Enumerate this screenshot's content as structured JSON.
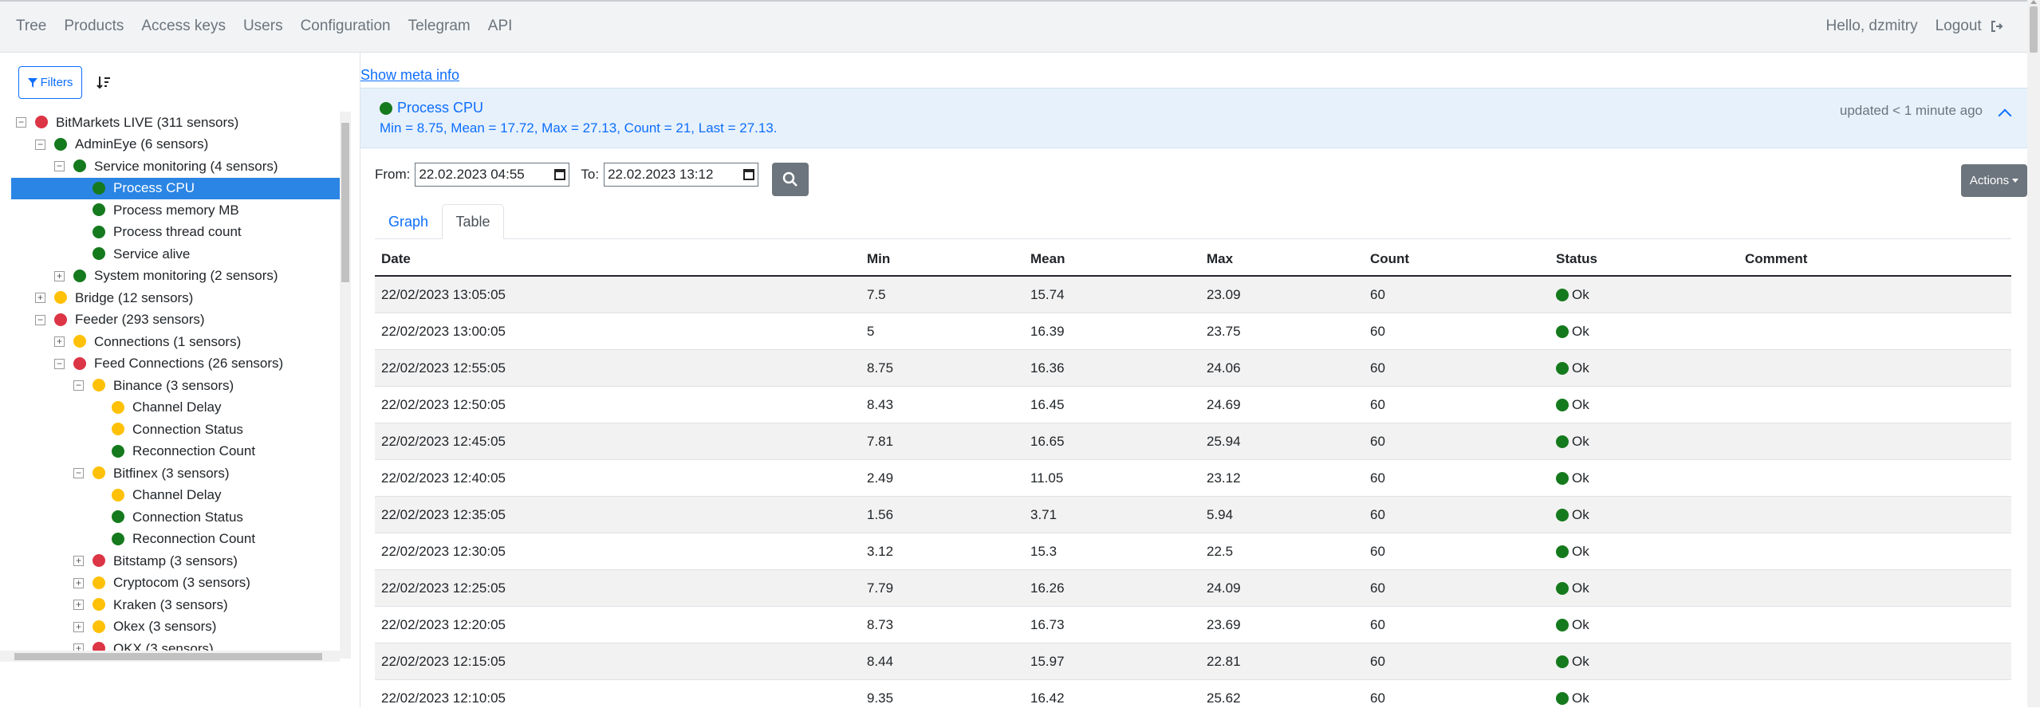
{
  "nav": {
    "links": [
      "Tree",
      "Products",
      "Access keys",
      "Users",
      "Configuration",
      "Telegram",
      "API"
    ],
    "greeting": "Hello, dzmitry",
    "logout": "Logout"
  },
  "sidebar": {
    "filters_label": "Filters",
    "tree": [
      {
        "label": "BitMarkets LIVE (311 sensors)",
        "status": "red",
        "depth": 0,
        "toggle": "minus"
      },
      {
        "label": "AdminEye (6 sensors)",
        "status": "green",
        "depth": 1,
        "toggle": "minus"
      },
      {
        "label": "Service monitoring (4 sensors)",
        "status": "green",
        "depth": 2,
        "toggle": "minus"
      },
      {
        "label": "Process CPU",
        "status": "green",
        "depth": 3,
        "toggle": "",
        "selected": true
      },
      {
        "label": "Process memory MB",
        "status": "green",
        "depth": 3,
        "toggle": ""
      },
      {
        "label": "Process thread count",
        "status": "green",
        "depth": 3,
        "toggle": ""
      },
      {
        "label": "Service alive",
        "status": "green",
        "depth": 3,
        "toggle": ""
      },
      {
        "label": "System monitoring (2 sensors)",
        "status": "green",
        "depth": 2,
        "toggle": "plus"
      },
      {
        "label": "Bridge (12 sensors)",
        "status": "yellow",
        "depth": 1,
        "toggle": "plus"
      },
      {
        "label": "Feeder (293 sensors)",
        "status": "red",
        "depth": 1,
        "toggle": "minus"
      },
      {
        "label": "Connections (1 sensors)",
        "status": "yellow",
        "depth": 2,
        "toggle": "plus"
      },
      {
        "label": "Feed Connections (26 sensors)",
        "status": "red",
        "depth": 2,
        "toggle": "minus"
      },
      {
        "label": "Binance (3 sensors)",
        "status": "yellow",
        "depth": 3,
        "toggle": "minus"
      },
      {
        "label": "Channel Delay",
        "status": "yellow",
        "depth": 4,
        "toggle": ""
      },
      {
        "label": "Connection Status",
        "status": "yellow",
        "depth": 4,
        "toggle": ""
      },
      {
        "label": "Reconnection Count",
        "status": "green",
        "depth": 4,
        "toggle": ""
      },
      {
        "label": "Bitfinex (3 sensors)",
        "status": "yellow",
        "depth": 3,
        "toggle": "minus"
      },
      {
        "label": "Channel Delay",
        "status": "yellow",
        "depth": 4,
        "toggle": ""
      },
      {
        "label": "Connection Status",
        "status": "green",
        "depth": 4,
        "toggle": ""
      },
      {
        "label": "Reconnection Count",
        "status": "green",
        "depth": 4,
        "toggle": ""
      },
      {
        "label": "Bitstamp (3 sensors)",
        "status": "red",
        "depth": 3,
        "toggle": "plus"
      },
      {
        "label": "Cryptocom (3 sensors)",
        "status": "yellow",
        "depth": 3,
        "toggle": "plus"
      },
      {
        "label": "Kraken (3 sensors)",
        "status": "yellow",
        "depth": 3,
        "toggle": "plus"
      },
      {
        "label": "Okex (3 sensors)",
        "status": "yellow",
        "depth": 3,
        "toggle": "plus"
      },
      {
        "label": "OKX (3 sensors)",
        "status": "red",
        "depth": 3,
        "toggle": "plus"
      }
    ]
  },
  "main": {
    "meta_link": "Show meta info",
    "sensor": {
      "title": "Process CPU",
      "stats": "Min = 8.75, Mean = 17.72, Max = 27.13, Count = 21, Last = 27.13.",
      "updated": "updated < 1 minute ago"
    },
    "range": {
      "from_label": "From:",
      "from_value": "22.02.2023 04:55",
      "to_label": "To:",
      "to_value": "22.02.2023 13:12"
    },
    "actions_label": "Actions",
    "tabs": {
      "graph": "Graph",
      "table": "Table"
    },
    "table": {
      "columns": [
        "Date",
        "Min",
        "Mean",
        "Max",
        "Count",
        "Status",
        "Comment"
      ],
      "rows": [
        [
          "22/02/2023 13:05:05",
          "7.5",
          "15.74",
          "23.09",
          "60",
          "Ok",
          ""
        ],
        [
          "22/02/2023 13:00:05",
          "5",
          "16.39",
          "23.75",
          "60",
          "Ok",
          ""
        ],
        [
          "22/02/2023 12:55:05",
          "8.75",
          "16.36",
          "24.06",
          "60",
          "Ok",
          ""
        ],
        [
          "22/02/2023 12:50:05",
          "8.43",
          "16.45",
          "24.69",
          "60",
          "Ok",
          ""
        ],
        [
          "22/02/2023 12:45:05",
          "7.81",
          "16.65",
          "25.94",
          "60",
          "Ok",
          ""
        ],
        [
          "22/02/2023 12:40:05",
          "2.49",
          "11.05",
          "23.12",
          "60",
          "Ok",
          ""
        ],
        [
          "22/02/2023 12:35:05",
          "1.56",
          "3.71",
          "5.94",
          "60",
          "Ok",
          ""
        ],
        [
          "22/02/2023 12:30:05",
          "3.12",
          "15.3",
          "22.5",
          "60",
          "Ok",
          ""
        ],
        [
          "22/02/2023 12:25:05",
          "7.79",
          "16.26",
          "24.09",
          "60",
          "Ok",
          ""
        ],
        [
          "22/02/2023 12:20:05",
          "8.73",
          "16.73",
          "23.69",
          "60",
          "Ok",
          ""
        ],
        [
          "22/02/2023 12:15:05",
          "8.44",
          "15.97",
          "22.81",
          "60",
          "Ok",
          ""
        ],
        [
          "22/02/2023 12:10:05",
          "9.35",
          "16.42",
          "25.62",
          "60",
          "Ok",
          ""
        ]
      ]
    }
  }
}
